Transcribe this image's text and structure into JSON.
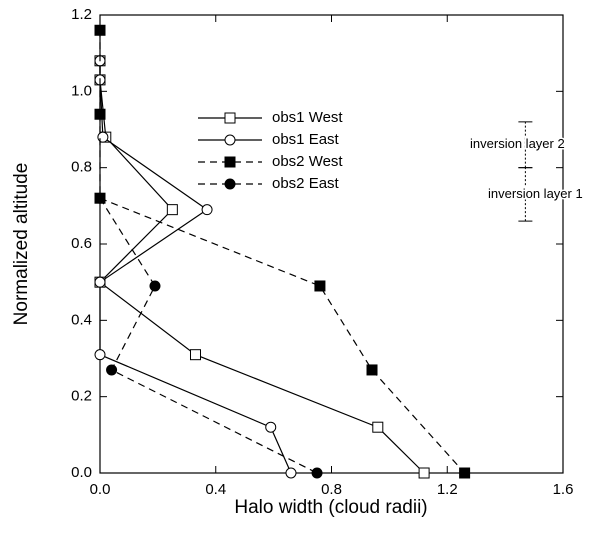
{
  "chart_data": {
    "type": "line",
    "xlabel": "Halo width (cloud radii)",
    "ylabel": "Normalized altitude",
    "xlim": [
      0,
      1.6
    ],
    "ylim": [
      0,
      1.2
    ],
    "xticks": [
      {
        "value": 0,
        "label": "0.0"
      },
      {
        "value": 0.4,
        "label": "0.4"
      },
      {
        "value": 0.8,
        "label": "0.8"
      },
      {
        "value": 1.2,
        "label": "1.2"
      },
      {
        "value": 1.6,
        "label": "1.6"
      }
    ],
    "yticks": [
      {
        "value": 0,
        "label": "0.0"
      },
      {
        "value": 0.2,
        "label": "0.2"
      },
      {
        "value": 0.4,
        "label": "0.4"
      },
      {
        "value": 0.6,
        "label": "0.6"
      },
      {
        "value": 0.8,
        "label": "0.8"
      },
      {
        "value": 1.0,
        "label": "1.0"
      },
      {
        "value": 1.2,
        "label": "1.2"
      }
    ],
    "grid": false,
    "series": [
      {
        "name": "obs1 West",
        "color": "#000",
        "dash": false,
        "marker": "square",
        "filled": false,
        "x": [
          0,
          0,
          0.02,
          0.25,
          0,
          0.33,
          0.96,
          1.12
        ],
        "values": [
          1.08,
          1.03,
          0.88,
          0.69,
          0.5,
          0.31,
          0.12,
          0.0
        ]
      },
      {
        "name": "obs1 East",
        "color": "#000",
        "dash": false,
        "marker": "circle",
        "filled": false,
        "x": [
          0,
          0,
          0.01,
          0.37,
          0,
          0,
          0.59,
          0.66
        ],
        "values": [
          1.08,
          1.03,
          0.88,
          0.69,
          0.5,
          0.31,
          0.12,
          0.0
        ]
      },
      {
        "name": "obs2 West",
        "color": "#000",
        "dash": true,
        "marker": "square",
        "filled": true,
        "x": [
          0,
          0,
          0,
          0.76,
          0.94,
          1.26
        ],
        "values": [
          1.16,
          0.94,
          0.72,
          0.49,
          0.27,
          0.0
        ]
      },
      {
        "name": "obs2 East",
        "color": "#000",
        "dash": true,
        "marker": "circle",
        "filled": true,
        "x": [
          0,
          0.19,
          0.04,
          0.75
        ],
        "values": [
          0.72,
          0.49,
          0.27,
          0.0
        ]
      }
    ],
    "annotations": [
      {
        "text": "inversion layer 2",
        "x": 1.47,
        "y": [
          0.8,
          0.92
        ]
      },
      {
        "text": "inversion layer 1",
        "x": 1.47,
        "y": [
          0.66,
          0.8
        ]
      }
    ]
  }
}
